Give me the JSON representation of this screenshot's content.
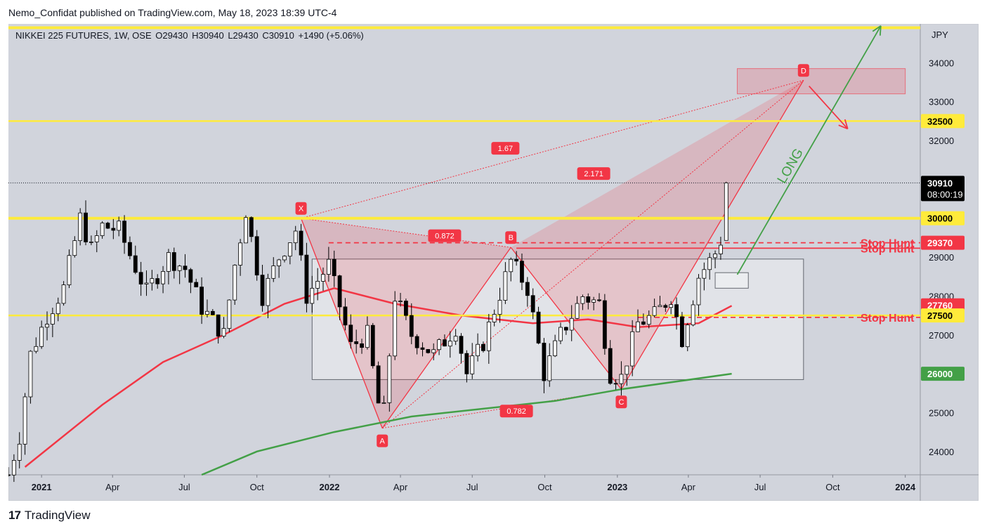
{
  "publisher_line": "Nemo_Confidat published on TradingView.com, May 18, 2023 18:39 UTC-4",
  "symbol": {
    "name": "NIKKEI 225 FUTURES, 1W, OSE",
    "open": "O29430",
    "high": "H30940",
    "low": "L29430",
    "close": "C30910",
    "change": "+1490 (+5.06%)"
  },
  "currency": "JPY",
  "footer_logo": "TradingView",
  "colors": {
    "background": "#d1d4dc",
    "bull_candle": "#ffffff",
    "bear_candle": "#000000",
    "ma_fast": "#f23645",
    "ma_slow": "#43a047",
    "level_yellow": "#ffeb3b",
    "pattern_red": "#f23645",
    "arrow_green": "#43a047"
  },
  "chart_data": {
    "type": "candlestick",
    "title": "",
    "xlabel": "",
    "ylabel": "",
    "x_axis": {
      "range": [
        "2020-11-20",
        "2024-01-20"
      ],
      "ticks": [
        {
          "date": "2021-01-01",
          "label": "2021",
          "bold": true
        },
        {
          "date": "2021-04-01",
          "label": "Apr",
          "bold": false
        },
        {
          "date": "2021-07-01",
          "label": "Jul",
          "bold": false
        },
        {
          "date": "2021-10-01",
          "label": "Oct",
          "bold": false
        },
        {
          "date": "2022-01-01",
          "label": "2022",
          "bold": true
        },
        {
          "date": "2022-04-01",
          "label": "Apr",
          "bold": false
        },
        {
          "date": "2022-07-01",
          "label": "Jul",
          "bold": false
        },
        {
          "date": "2022-10-01",
          "label": "Oct",
          "bold": false
        },
        {
          "date": "2023-01-01",
          "label": "2023",
          "bold": true
        },
        {
          "date": "2023-04-01",
          "label": "Apr",
          "bold": false
        },
        {
          "date": "2023-07-01",
          "label": "Jul",
          "bold": false
        },
        {
          "date": "2023-10-01",
          "label": "Oct",
          "bold": false
        },
        {
          "date": "2024-01-01",
          "label": "2024",
          "bold": true
        }
      ]
    },
    "y_axis": {
      "range": [
        23400,
        35000
      ],
      "ticks": [
        24000,
        25000,
        26000,
        27000,
        28000,
        29000,
        30000,
        31000,
        32000,
        33000,
        34000
      ],
      "labels": [
        "24000",
        "25000",
        "26000",
        "27000",
        "28000",
        "29000",
        "30000",
        "31000",
        "32000",
        "33000",
        "34000"
      ]
    },
    "candle_anchors": [
      [
        "2020-11-20",
        23400
      ],
      [
        "2020-12-04",
        24400
      ],
      [
        "2020-12-18",
        26500
      ],
      [
        "2021-01-08",
        27500
      ],
      [
        "2021-01-29",
        28200
      ],
      [
        "2021-02-19",
        30000
      ],
      [
        "2021-03-05",
        29200
      ],
      [
        "2021-03-19",
        29800
      ],
      [
        "2021-04-09",
        29700
      ],
      [
        "2021-05-14",
        28100
      ],
      [
        "2021-06-11",
        29000
      ],
      [
        "2021-07-02",
        28700
      ],
      [
        "2021-07-23",
        27700
      ],
      [
        "2021-08-20",
        27000
      ],
      [
        "2021-09-03",
        28800
      ],
      [
        "2021-09-17",
        30200
      ],
      [
        "2021-10-08",
        28000
      ],
      [
        "2021-10-29",
        29000
      ],
      [
        "2021-11-19",
        29700
      ],
      [
        "2021-12-03",
        28000
      ],
      [
        "2021-12-31",
        28800
      ],
      [
        "2022-01-28",
        26700
      ],
      [
        "2022-02-18",
        27000
      ],
      [
        "2022-03-09",
        24600
      ],
      [
        "2022-03-25",
        28000
      ],
      [
        "2022-04-15",
        27000
      ],
      [
        "2022-05-13",
        26500
      ],
      [
        "2022-06-10",
        27200
      ],
      [
        "2022-06-24",
        26000
      ],
      [
        "2022-07-15",
        26800
      ],
      [
        "2022-08-19",
        28900
      ],
      [
        "2022-09-09",
        28200
      ],
      [
        "2022-09-30",
        26000
      ],
      [
        "2022-10-21",
        27000
      ],
      [
        "2022-11-18",
        28000
      ],
      [
        "2022-12-09",
        27800
      ],
      [
        "2022-12-23",
        26000
      ],
      [
        "2023-01-06",
        25900
      ],
      [
        "2023-01-27",
        27300
      ],
      [
        "2023-02-17",
        27500
      ],
      [
        "2023-03-10",
        28000
      ],
      [
        "2023-03-24",
        26900
      ],
      [
        "2023-04-14",
        28500
      ],
      [
        "2023-05-05",
        29100
      ],
      [
        "2023-05-12",
        29430
      ],
      [
        "2023-05-19",
        30910
      ]
    ],
    "last_candle": {
      "date": "2023-05-19",
      "open": 29430,
      "high": 30940,
      "low": 29430,
      "close": 30910
    },
    "moving_averages": [
      {
        "color": "#f23645",
        "points": [
          [
            "2020-12-11",
            23600
          ],
          [
            "2021-03-19",
            25200
          ],
          [
            "2021-06-04",
            26300
          ],
          [
            "2021-08-20",
            27000
          ],
          [
            "2021-11-05",
            27800
          ],
          [
            "2022-01-07",
            28200
          ],
          [
            "2022-03-25",
            27800
          ],
          [
            "2022-06-17",
            27500
          ],
          [
            "2022-09-16",
            27300
          ],
          [
            "2022-11-25",
            27400
          ],
          [
            "2023-01-27",
            27200
          ],
          [
            "2023-04-14",
            27300
          ],
          [
            "2023-05-26",
            27750
          ]
        ]
      },
      {
        "color": "#43a047",
        "points": [
          [
            "2021-07-23",
            23400
          ],
          [
            "2021-10-01",
            24000
          ],
          [
            "2022-01-07",
            24500
          ],
          [
            "2022-04-15",
            24900
          ],
          [
            "2022-10-14",
            25300
          ],
          [
            "2023-01-06",
            25600
          ],
          [
            "2023-05-26",
            26000
          ]
        ]
      }
    ],
    "horizontal_levels": [
      {
        "price": 34900,
        "color": "#ffeb3b",
        "label": ""
      },
      {
        "price": 32500,
        "color": "#ffeb3b",
        "label": "32500"
      },
      {
        "price": 30000,
        "color": "#ffeb3b",
        "label": "30000"
      },
      {
        "price": 27500,
        "color": "#ffeb3b",
        "label": "27500"
      }
    ],
    "stop_hunt_lines": [
      {
        "price": 29370,
        "style": "dashed",
        "from": "2021-12-31",
        "label": "Stop Hunt"
      },
      {
        "price": 29230,
        "style": "solid",
        "from": "2022-08-26",
        "label": "Stop Hunt"
      },
      {
        "price": 27450,
        "style": "dashed",
        "from": "2023-01-27",
        "label": "Stop Hunt"
      }
    ],
    "price_badges": [
      {
        "price": 30910,
        "label": "30910",
        "sub": "08:00:19",
        "bg": "#000000",
        "fg": "#ffffff"
      },
      {
        "price": 32500,
        "label": "32500",
        "bg": "#ffeb3b",
        "fg": "#000000"
      },
      {
        "price": 30000,
        "label": "30000",
        "bg": "#ffeb3b",
        "fg": "#000000"
      },
      {
        "price": 29370,
        "label": "29370",
        "bg": "#f23645",
        "fg": "#ffffff"
      },
      {
        "price": 27760,
        "label": "27760",
        "bg": "#f23645",
        "fg": "#ffffff"
      },
      {
        "price": 27500,
        "label": "27500",
        "bg": "#ffeb3b",
        "fg": "#000000"
      },
      {
        "price": 26000,
        "label": "26000",
        "bg": "#43a047",
        "fg": "#ffffff"
      }
    ],
    "harmonic_pattern": {
      "points": [
        {
          "label": "X",
          "date": "2021-11-26",
          "price": 30000
        },
        {
          "label": "A",
          "date": "2022-03-09",
          "price": 24600
        },
        {
          "label": "B",
          "date": "2022-08-19",
          "price": 29250
        },
        {
          "label": "C",
          "date": "2023-01-06",
          "price": 25600
        },
        {
          "label": "D",
          "date": "2023-08-25",
          "price": 33550
        }
      ],
      "ratios": [
        {
          "label": "0.872",
          "date": "2022-05-27",
          "price": 29550
        },
        {
          "label": "0.782",
          "date": "2022-08-26",
          "price": 25040
        },
        {
          "label": "1.67",
          "date": "2022-08-12",
          "price": 31800
        },
        {
          "label": "2.171",
          "date": "2022-12-02",
          "price": 31150
        }
      ]
    },
    "boxes": [
      {
        "from": "2021-12-10",
        "to": "2023-08-25",
        "top": 28950,
        "bottom": 25850,
        "fill": "#ffffff"
      },
      {
        "from": "2023-05-05",
        "to": "2023-06-16",
        "top": 28600,
        "bottom": 28200,
        "fill": "#ffffff"
      },
      {
        "from": "2023-06-02",
        "to": "2024-01-01",
        "top": 33850,
        "bottom": 33200,
        "fill": "#f23645"
      }
    ],
    "arrows": [
      {
        "color": "#f23645",
        "from": [
          "2023-09-01",
          33400
        ],
        "to": [
          "2023-10-20",
          32300
        ]
      },
      {
        "color": "#43a047",
        "from": [
          "2023-06-02",
          28550
        ],
        "to": [
          "2023-12-01",
          34950
        ],
        "label": "LONG"
      }
    ]
  }
}
